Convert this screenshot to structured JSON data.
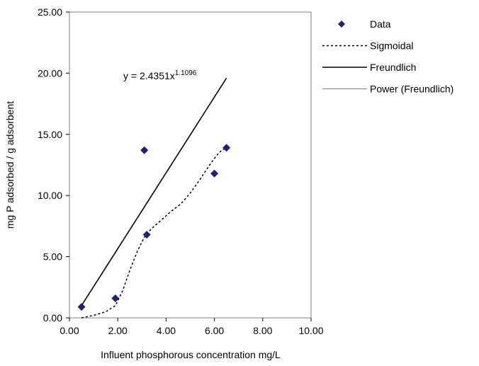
{
  "chart_data": {
    "type": "scatter",
    "title": "",
    "xlabel": "Influent phosphorous concentration mg/L",
    "ylabel": "mg P adsorbed / g adsorbent",
    "xlim": [
      0,
      10
    ],
    "ylim": [
      0,
      25
    ],
    "x_ticks": [
      "0.00",
      "2.00",
      "4.00",
      "6.00",
      "8.00",
      "10.00"
    ],
    "y_ticks": [
      "0.00",
      "5.00",
      "10.00",
      "15.00",
      "20.00",
      "25.00"
    ],
    "grid": false,
    "legend_position": "right",
    "series": [
      {
        "name": "Data",
        "kind": "marker",
        "marker": "diamond",
        "color": "#1f1f7a",
        "points": [
          [
            0.5,
            0.9
          ],
          [
            1.9,
            1.6
          ],
          [
            3.1,
            13.7
          ],
          [
            3.2,
            6.8
          ],
          [
            6.0,
            11.8
          ],
          [
            6.5,
            13.9
          ]
        ]
      },
      {
        "name": "Sigmoidal",
        "kind": "line",
        "style": "dashed",
        "color": "#000000",
        "points": [
          [
            0.5,
            0.0
          ],
          [
            1.0,
            0.2
          ],
          [
            1.5,
            0.5
          ],
          [
            1.9,
            1.0
          ],
          [
            2.2,
            2.2
          ],
          [
            2.5,
            3.9
          ],
          [
            2.8,
            5.4
          ],
          [
            3.1,
            6.6
          ],
          [
            3.4,
            7.3
          ],
          [
            3.8,
            8.0
          ],
          [
            4.2,
            8.7
          ],
          [
            4.6,
            9.3
          ],
          [
            5.0,
            10.2
          ],
          [
            5.4,
            11.3
          ],
          [
            5.8,
            12.5
          ],
          [
            6.1,
            13.3
          ],
          [
            6.3,
            13.7
          ],
          [
            6.5,
            13.9
          ]
        ]
      },
      {
        "name": "Freundlich",
        "kind": "line",
        "style": "solid",
        "color": "#000000",
        "points": [
          [
            0.5,
            1.0
          ],
          [
            6.5,
            19.6
          ]
        ]
      },
      {
        "name": "Power (Freundlich)",
        "kind": "legend-only",
        "style": "solid",
        "color": "#7f7f7f"
      }
    ],
    "annotations": [
      {
        "text": "y = 2.4351x",
        "superscript": "1.1096"
      }
    ]
  }
}
